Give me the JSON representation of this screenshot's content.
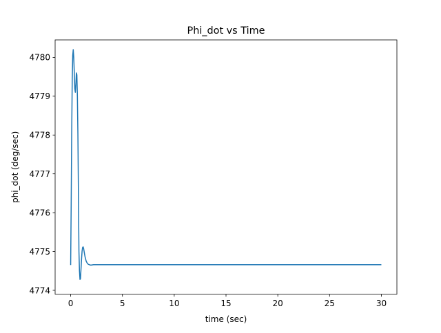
{
  "chart_data": {
    "type": "line",
    "title": "Phi_dot vs Time",
    "xlabel": "time (sec)",
    "ylabel": "phi_dot (deg/sec)",
    "xlim": [
      -1.5,
      31.5
    ],
    "ylim": [
      4773.9,
      4780.45
    ],
    "xticks": [
      0,
      5,
      10,
      15,
      20,
      25,
      30
    ],
    "yticks": [
      4774,
      4775,
      4776,
      4777,
      4778,
      4779,
      4780
    ],
    "grid": false,
    "legend": false,
    "line_color": "#1f77b4",
    "series": [
      {
        "x": [
          0,
          0.05,
          0.1,
          0.15,
          0.2,
          0.25,
          0.3,
          0.35,
          0.4,
          0.45,
          0.5,
          0.55,
          0.6,
          0.65,
          0.7,
          0.75,
          0.8,
          0.85,
          0.9,
          0.95,
          1.0,
          1.05,
          1.1,
          1.15,
          1.2,
          1.25,
          1.3,
          1.35,
          1.4,
          1.5,
          1.6,
          1.7,
          1.8,
          1.9,
          2.0,
          2.2,
          2.4,
          2.6,
          3.0,
          4,
          6,
          10,
          15,
          20,
          25,
          30
        ],
        "y": [
          4774.65,
          4776.2,
          4778.0,
          4779.4,
          4780.05,
          4780.2,
          4780.0,
          4779.6,
          4779.2,
          4779.1,
          4779.3,
          4779.6,
          4779.55,
          4779.0,
          4778.0,
          4776.5,
          4775.0,
          4774.5,
          4774.28,
          4774.3,
          4774.55,
          4774.8,
          4775.0,
          4775.1,
          4775.12,
          4775.08,
          4775.0,
          4774.92,
          4774.85,
          4774.75,
          4774.7,
          4774.67,
          4774.66,
          4774.65,
          4774.65,
          4774.66,
          4774.66,
          4774.66,
          4774.66,
          4774.66,
          4774.66,
          4774.66,
          4774.66,
          4774.66,
          4774.66,
          4774.66
        ]
      }
    ]
  }
}
